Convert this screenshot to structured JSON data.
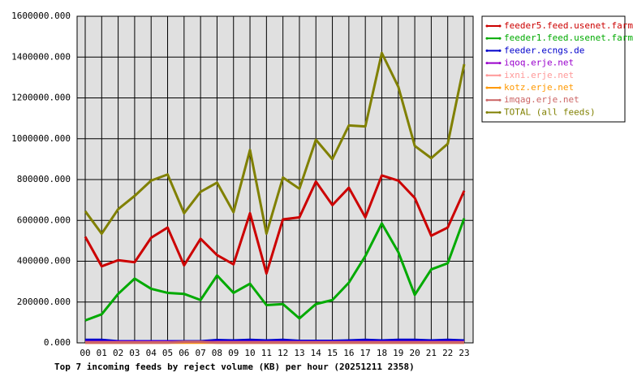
{
  "chart_data": {
    "type": "line",
    "title": "Top 7 incoming feeds by reject volume (KB) per hour (20251211 2358)",
    "categories": [
      "00",
      "01",
      "02",
      "03",
      "04",
      "05",
      "06",
      "07",
      "08",
      "09",
      "10",
      "11",
      "12",
      "13",
      "14",
      "15",
      "16",
      "17",
      "18",
      "19",
      "20",
      "21",
      "22",
      "23"
    ],
    "ylim": [
      0,
      1600000
    ],
    "yticks": [
      {
        "value": 0,
        "label": "0.000"
      },
      {
        "value": 200000,
        "label": "200000.000"
      },
      {
        "value": 400000,
        "label": "400000.000"
      },
      {
        "value": 600000,
        "label": "600000.000"
      },
      {
        "value": 800000,
        "label": "800000.000"
      },
      {
        "value": 1000000,
        "label": "1000000.000"
      },
      {
        "value": 1200000,
        "label": "1200000.000"
      },
      {
        "value": 1400000,
        "label": "1400000.000"
      },
      {
        "value": 1600000,
        "label": "1600000.000"
      }
    ],
    "grid": true,
    "legend": "right",
    "series": [
      {
        "name": "feeder5.feed.usenet.farm",
        "color": "#cc0000",
        "values": [
          520000,
          375000,
          405000,
          395000,
          515000,
          565000,
          380000,
          510000,
          430000,
          385000,
          635000,
          340000,
          605000,
          615000,
          790000,
          675000,
          760000,
          615000,
          820000,
          795000,
          710000,
          525000,
          565000,
          745000
        ]
      },
      {
        "name": "feeder1.feed.usenet.farm",
        "color": "#00aa00",
        "values": [
          110000,
          140000,
          240000,
          315000,
          265000,
          245000,
          240000,
          210000,
          330000,
          245000,
          290000,
          185000,
          190000,
          120000,
          190000,
          210000,
          295000,
          425000,
          585000,
          445000,
          235000,
          360000,
          390000,
          610000
        ]
      },
      {
        "name": "feeder.ecngs.de",
        "color": "#0000cc",
        "values": [
          15000,
          15000,
          8000,
          8000,
          8000,
          8000,
          8000,
          8000,
          14000,
          12000,
          15000,
          12000,
          15000,
          10000,
          10000,
          10000,
          12000,
          15000,
          12000,
          15000,
          15000,
          12000,
          15000,
          12000
        ]
      },
      {
        "name": "iqoq.erje.net",
        "color": "#9900cc",
        "values": [
          5000,
          5000,
          5000,
          5000,
          5000,
          5000,
          5000,
          5000,
          5000,
          5000,
          5000,
          5000,
          5000,
          5000,
          5000,
          5000,
          5000,
          5000,
          5000,
          5000,
          5000,
          5000,
          5000,
          5000
        ]
      },
      {
        "name": "ixni.erje.net",
        "color": "#ff9999",
        "values": [
          2000,
          2000,
          2000,
          2000,
          2000,
          2000,
          2000,
          2000,
          2000,
          2000,
          2000,
          2000,
          2000,
          2000,
          2000,
          2000,
          2000,
          2000,
          2000,
          2000,
          2000,
          2000,
          2000,
          2000
        ]
      },
      {
        "name": "kotz.erje.net",
        "color": "#ff9900",
        "values": [
          1000,
          1000,
          1000,
          1000,
          1000,
          1000,
          1000,
          1000,
          1000,
          1000,
          1000,
          1000,
          1000,
          1000,
          1000,
          1000,
          1000,
          1000,
          1000,
          1000,
          1000,
          1000,
          1000,
          1000
        ]
      },
      {
        "name": "imqag.erje.net",
        "color": "#cc6666",
        "values": [
          1000,
          1000,
          1000,
          1000,
          1000,
          1000,
          5000,
          5000,
          1000,
          1000,
          1000,
          1000,
          1000,
          1000,
          1000,
          1000,
          1000,
          1000,
          1000,
          1000,
          1000,
          1000,
          1000,
          1000
        ]
      },
      {
        "name": "TOTAL (all feeds)",
        "color": "#808000",
        "values": [
          645000,
          535000,
          655000,
          720000,
          795000,
          825000,
          635000,
          740000,
          785000,
          640000,
          945000,
          535000,
          810000,
          755000,
          995000,
          900000,
          1065000,
          1060000,
          1420000,
          1255000,
          965000,
          905000,
          975000,
          1365000
        ]
      }
    ]
  }
}
